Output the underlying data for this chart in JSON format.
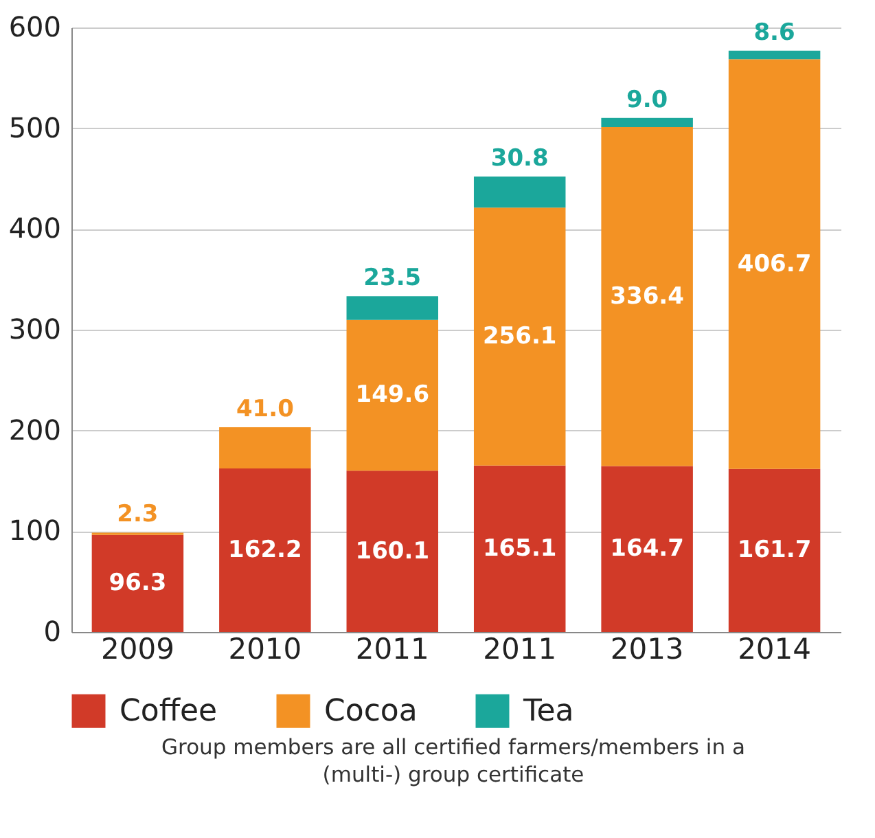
{
  "chart_data": {
    "type": "bar",
    "stacked": true,
    "categories": [
      "2009",
      "2010",
      "2011",
      "2011",
      "2013",
      "2014"
    ],
    "series": [
      {
        "name": "Coffee",
        "color": "#d13a28",
        "values": [
          96.3,
          162.2,
          160.1,
          165.1,
          164.7,
          161.7
        ],
        "value_labels": [
          "96.3",
          "162.2",
          "160.1",
          "165.1",
          "164.7",
          "161.7"
        ]
      },
      {
        "name": "Cocoa",
        "color": "#f39224",
        "values": [
          2.3,
          41.0,
          149.6,
          256.1,
          336.4,
          406.7
        ],
        "value_labels": [
          "2.3",
          "41.0",
          "149.6",
          "256.1",
          "336.4",
          "406.7"
        ]
      },
      {
        "name": "Tea",
        "color": "#1ba79b",
        "values": [
          null,
          null,
          23.5,
          30.8,
          9.0,
          8.6
        ],
        "value_labels": [
          null,
          null,
          "23.5",
          "30.8",
          "9.0",
          "8.6"
        ]
      }
    ],
    "ylim": [
      0,
      600
    ],
    "yticks": [
      0,
      100,
      200,
      300,
      400,
      500,
      600
    ],
    "grid": "y",
    "legend": "bottom",
    "annotations": [
      "Group members are all certified farmers/members in a (multi-) group certificate"
    ]
  }
}
